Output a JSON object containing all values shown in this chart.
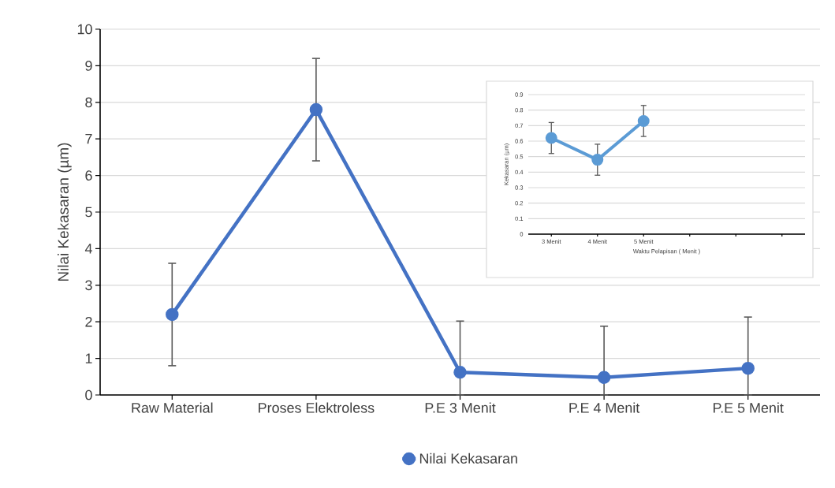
{
  "chart_data": [
    {
      "type": "line",
      "ylabel": "Nilai Kekasaran (µm)",
      "categories": [
        "Raw Material",
        "Proses Elektroless",
        "P.E 3 Menit",
        "P.E 4 Menit",
        "P.E 5 Menit"
      ],
      "series": [
        {
          "name": "Nilai Kekasaran",
          "color": "#4472c4",
          "values": [
            2.2,
            7.8,
            0.62,
            0.48,
            0.73
          ],
          "errors": [
            1.4,
            1.4,
            [
              0,
              2.02
            ],
            [
              0,
              1.88
            ],
            [
              0,
              2.13
            ]
          ]
        }
      ],
      "ylim": [
        0,
        10
      ],
      "yticks": [
        0,
        1,
        2,
        3,
        4,
        5,
        6,
        7,
        8,
        9,
        10
      ],
      "grid": "y",
      "legend": "bottom",
      "marker": "circle",
      "line_style": "solid"
    },
    {
      "type": "line",
      "xlabel": "Waktu Pelapisan ( Menit )",
      "ylabel": "Kekasaran (µm)",
      "categories": [
        "3 Menit",
        "4 Menit",
        "5 Menit",
        null,
        null,
        null
      ],
      "series": [
        {
          "color": "#5b9bd5",
          "values": [
            0.62,
            0.48,
            0.73,
            null,
            null,
            null
          ],
          "errors": [
            0.1,
            0.1,
            0.1,
            null,
            null,
            null
          ]
        }
      ],
      "ylim": [
        0,
        0.9
      ],
      "yticks": [
        0,
        0.1,
        0.2,
        0.3,
        0.4,
        0.5,
        0.6,
        0.7,
        0.8,
        0.9
      ],
      "grid": "y",
      "marker": "circle",
      "line_style": "solid"
    }
  ]
}
